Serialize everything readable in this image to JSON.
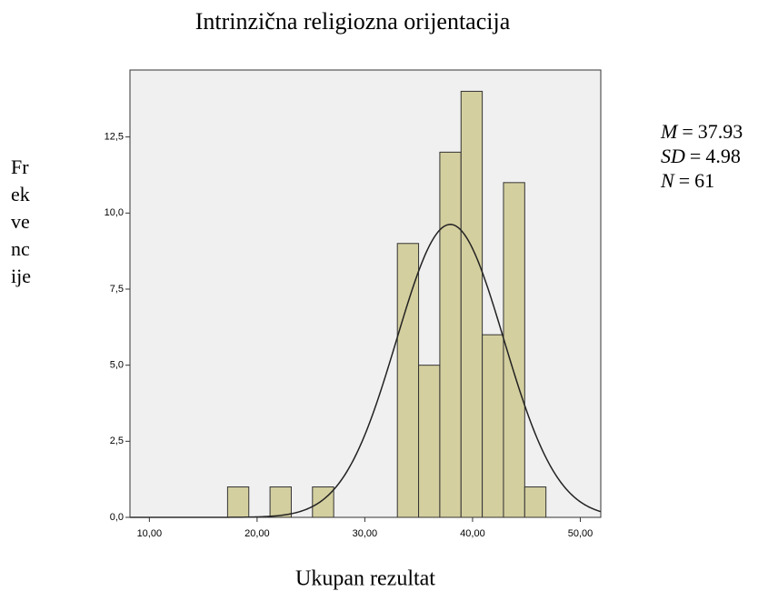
{
  "chart_data": {
    "type": "histogram",
    "title": "Intrinzična religiozna orijentacija",
    "xlabel": "Ukupan rezultat",
    "ylabel_lines": [
      "Fr",
      "ek",
      "ve",
      "nc",
      "ije"
    ],
    "bins": [
      17.26,
      19.23,
      21.2,
      23.17,
      25.14,
      27.11,
      29.08,
      31.05,
      33.02,
      34.99,
      36.96,
      38.93,
      40.9,
      42.87,
      44.84,
      46.81
    ],
    "values": [
      1,
      0,
      1,
      0,
      1,
      0,
      0,
      0,
      9,
      5,
      12,
      14,
      6,
      11,
      1
    ],
    "color": "#d4cf9f",
    "edge_color": "#333333",
    "xlim": [
      8.2,
      51.9
    ],
    "ylim": [
      0,
      14.7
    ],
    "xticks": [
      {
        "value": 10,
        "label": "10,00"
      },
      {
        "value": 20,
        "label": "20,00"
      },
      {
        "value": 30,
        "label": "30,00"
      },
      {
        "value": 40,
        "label": "40,00"
      },
      {
        "value": 50,
        "label": "50,00"
      }
    ],
    "yticks": [
      {
        "value": 0,
        "label": "0,0"
      },
      {
        "value": 2.5,
        "label": "2,5"
      },
      {
        "value": 5,
        "label": "5,0"
      },
      {
        "value": 7.5,
        "label": "7,5"
      },
      {
        "value": 10,
        "label": "10,0"
      },
      {
        "value": 12.5,
        "label": "12,5"
      }
    ],
    "stats": [
      {
        "symbol": "M",
        "equals": "=",
        "value": 37.93
      },
      {
        "symbol": "SD",
        "equals": "=",
        "value": 4.98
      },
      {
        "symbol": "N",
        "equals": "=",
        "value": 61
      }
    ],
    "normal_curve": true
  }
}
